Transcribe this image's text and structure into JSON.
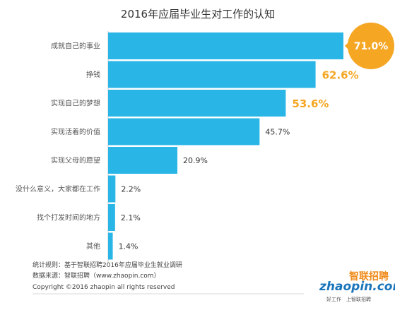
{
  "chart_data": {
    "type": "bar",
    "orientation": "horizontal",
    "title": "2016年应届毕业生对工作的认知",
    "categories": [
      "成就自己的事业",
      "挣钱",
      "实现自己的梦想",
      "实现活着的价值",
      "实现父母的愿望",
      "没什么意义，大家都在工作",
      "找个打发时间的地方",
      "其他"
    ],
    "values": [
      71.0,
      62.6,
      53.6,
      45.7,
      20.9,
      2.2,
      2.1,
      1.4
    ],
    "value_labels": [
      "71.0%",
      "62.6%",
      "53.6%",
      "45.7%",
      "20.9%",
      "2.2%",
      "2.1%",
      "1.4%"
    ],
    "xlim": [
      0,
      71.0
    ],
    "grid": false,
    "legend": "none",
    "highlight_top": 3
  },
  "colors": {
    "bar": "#29b6e6",
    "highlight": "#f5a623",
    "axis": "#cccccc",
    "logo_blue": "#1a75bb",
    "logo_orange": "#f08c1c"
  },
  "footer": {
    "rule": "统计规则：基于智联招聘2016年应届毕业生就业调研",
    "source": "数据来源：智联招聘（www.zhaopin.com）",
    "copyright": "Copyright ©2016 zhaopin all rights reserved"
  },
  "logo": {
    "latin": "zhaopin.com",
    "chinese": "智联招聘",
    "slogan_left": "好工作",
    "slogan_right": "上智联招聘"
  }
}
